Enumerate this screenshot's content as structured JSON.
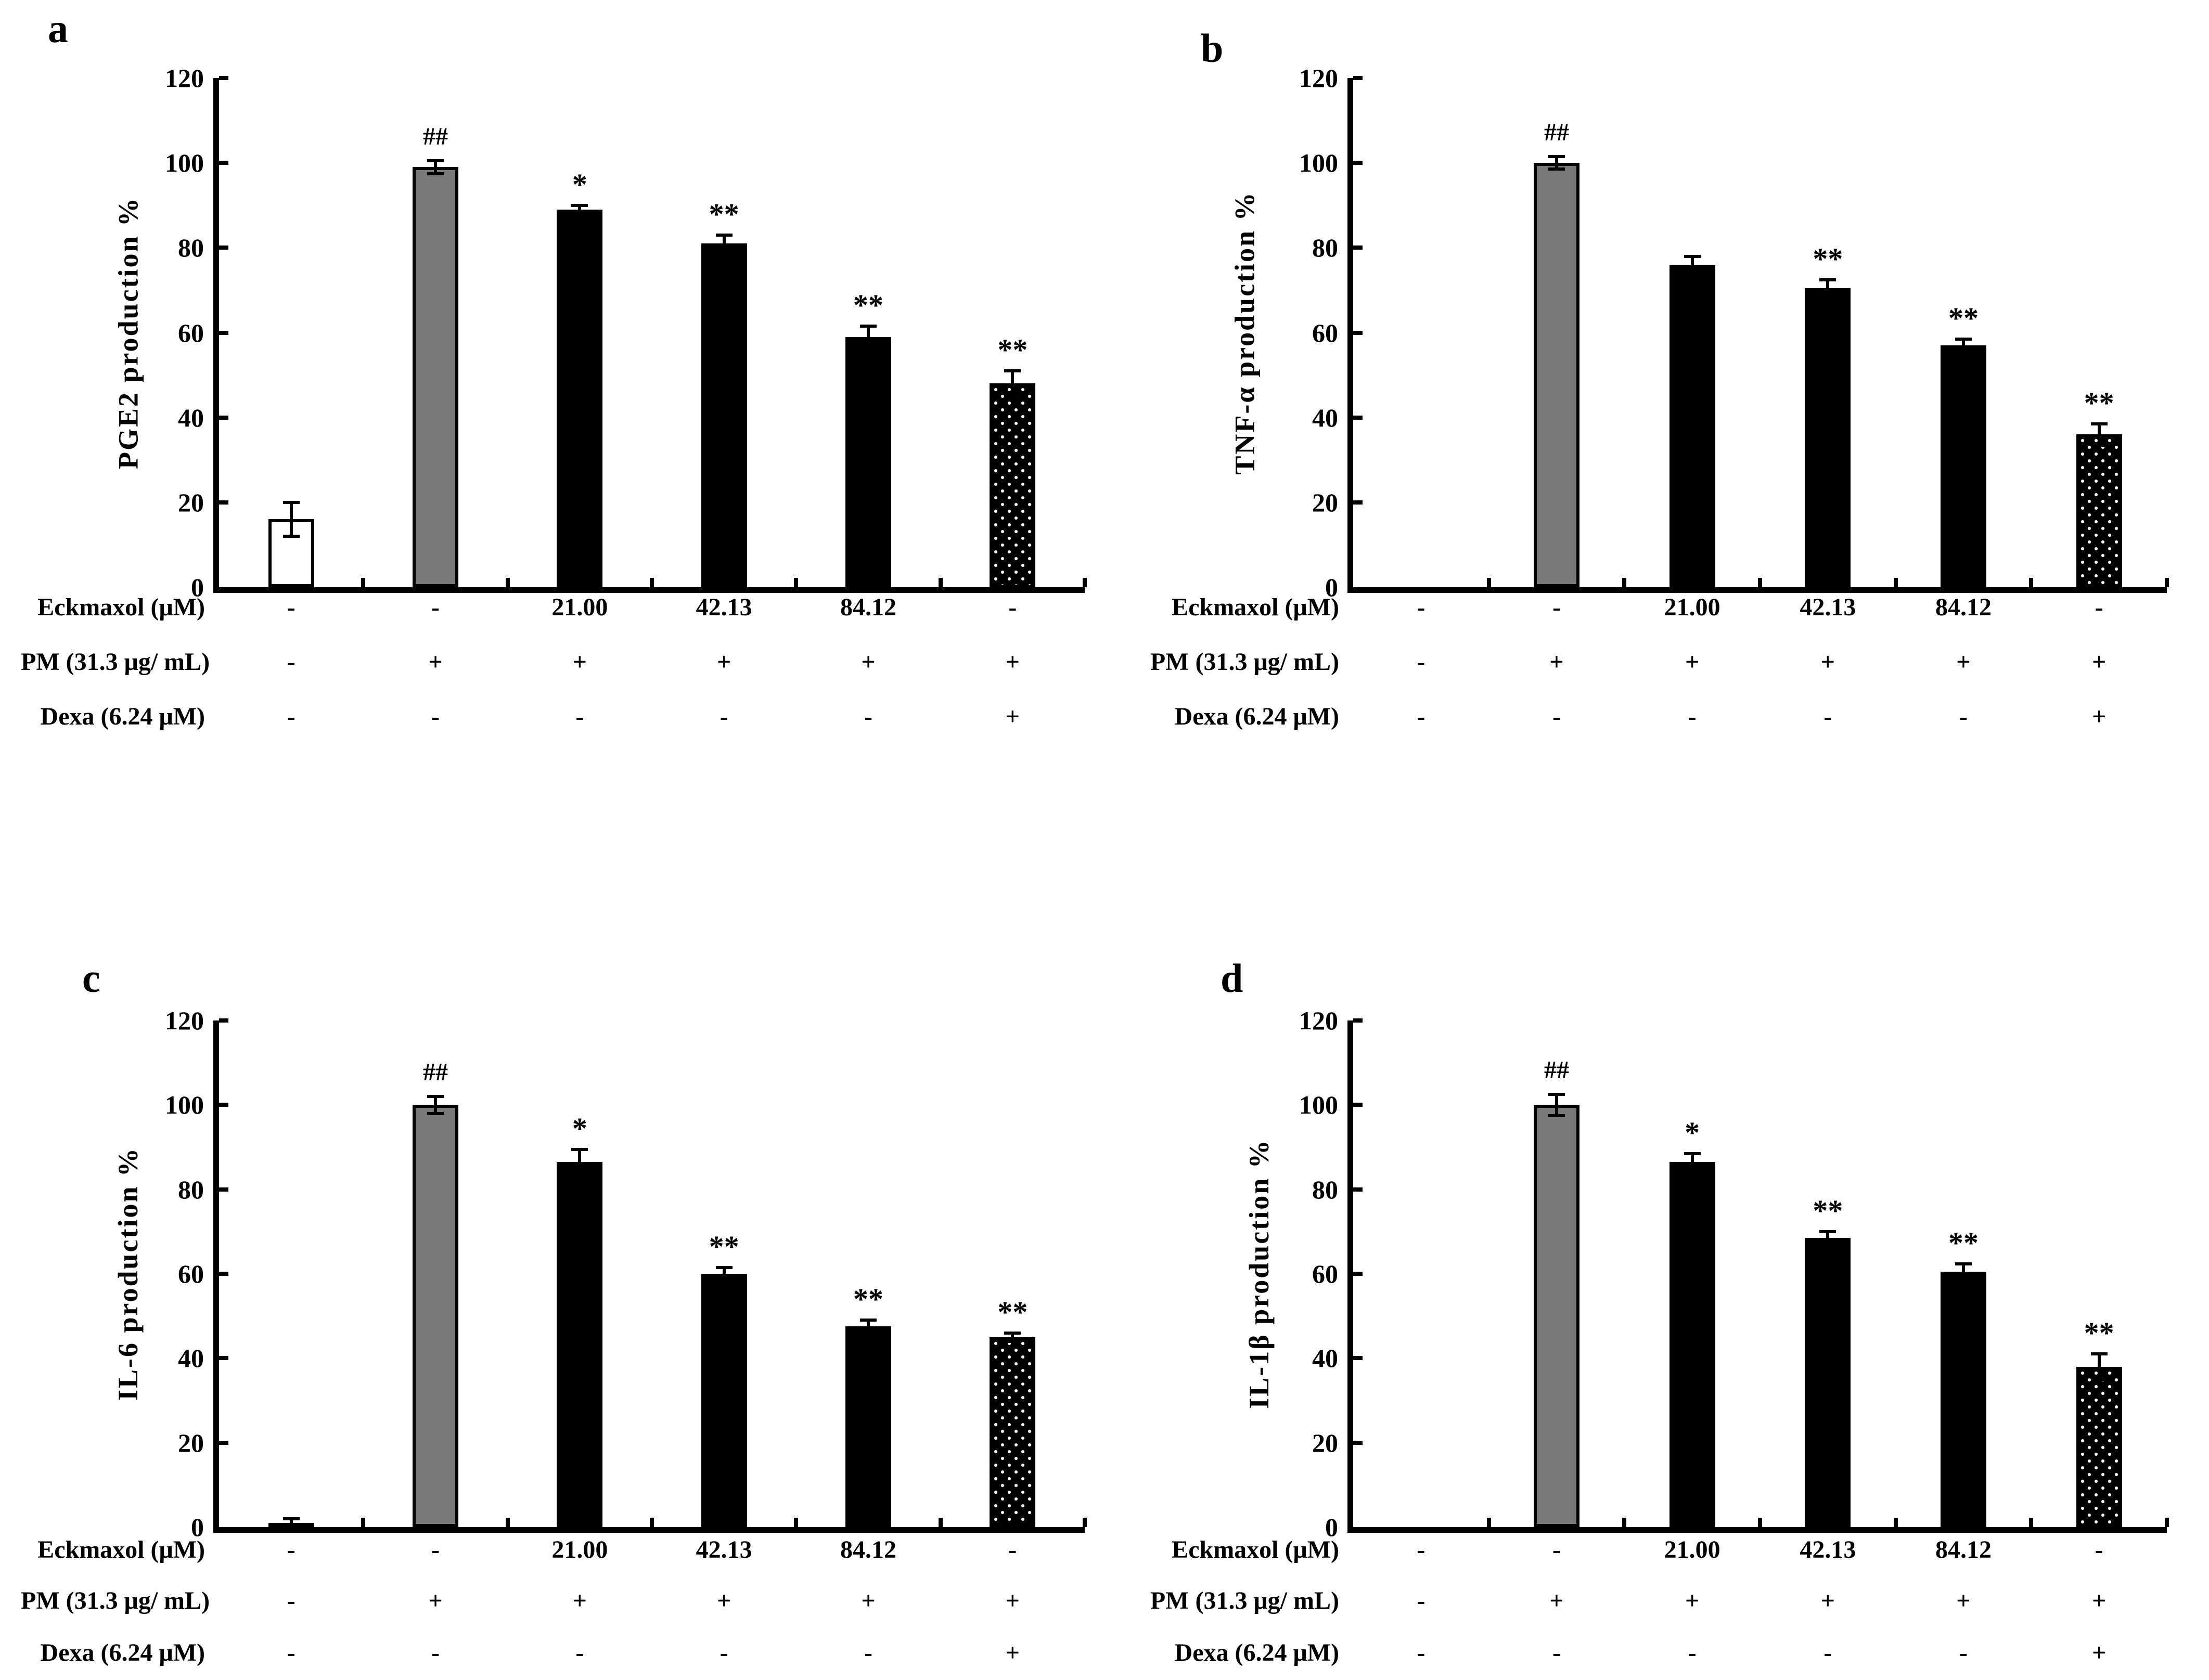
{
  "figure": {
    "background": "#ffffff",
    "colors": {
      "axis": "#000000",
      "bar_white": "#ffffff",
      "bar_gray": "#7a7a7a",
      "bar_black": "#000000",
      "dot_pattern": "#ffffff"
    }
  },
  "chart_data": [
    {
      "panel": "a",
      "type": "bar",
      "ylabel": "PGE2 production %",
      "ylim": [
        0,
        120
      ],
      "yticks": [
        0,
        20,
        40,
        60,
        80,
        100,
        120
      ],
      "values": [
        16,
        99,
        89,
        81,
        59,
        48
      ],
      "errors": [
        4,
        1.5,
        1,
        2,
        2.5,
        3
      ],
      "annotations": [
        "",
        "##",
        "*",
        "**",
        "**",
        "**"
      ],
      "bar_styles": [
        "white",
        "gray",
        "black",
        "black",
        "black",
        "dotted"
      ],
      "x_table": [
        {
          "label": "Eckmaxol (μM)",
          "values": [
            "-",
            "-",
            "21.00",
            "42.13",
            "84.12",
            "-"
          ]
        },
        {
          "label": "PM (31.3 μg/ mL)",
          "values": [
            "-",
            "+",
            "+",
            "+",
            "+",
            "+"
          ]
        },
        {
          "label": "Dexa (6.24 μM)",
          "values": [
            "-",
            "-",
            "-",
            "-",
            "-",
            "+"
          ]
        }
      ]
    },
    {
      "panel": "b",
      "type": "bar",
      "ylabel": "TNF-α production %",
      "ylim": [
        0,
        120
      ],
      "yticks": [
        0,
        20,
        40,
        60,
        80,
        100,
        120
      ],
      "values": [
        0,
        100,
        76,
        70.5,
        57,
        36
      ],
      "errors": [
        0,
        1.5,
        2,
        2,
        1.5,
        2.5
      ],
      "annotations": [
        "",
        "##",
        "",
        "**",
        "**",
        "**"
      ],
      "bar_styles": [
        "white",
        "gray",
        "black",
        "black",
        "black",
        "dotted"
      ],
      "x_table": [
        {
          "label": "Eckmaxol (μM)",
          "values": [
            "-",
            "-",
            "21.00",
            "42.13",
            "84.12",
            "-"
          ]
        },
        {
          "label": "PM (31.3 μg/ mL)",
          "values": [
            "-",
            "+",
            "+",
            "+",
            "+",
            "+"
          ]
        },
        {
          "label": "Dexa (6.24 μM)",
          "values": [
            "-",
            "-",
            "-",
            "-",
            "-",
            "+"
          ]
        }
      ]
    },
    {
      "panel": "c",
      "type": "bar",
      "ylabel": "IL-6 production %",
      "ylim": [
        0,
        120
      ],
      "yticks": [
        0,
        20,
        40,
        60,
        80,
        100,
        120
      ],
      "values": [
        1,
        100,
        86.5,
        60,
        47.5,
        45
      ],
      "errors": [
        1,
        2,
        3,
        1.5,
        1.5,
        1
      ],
      "annotations": [
        "",
        "##",
        "*",
        "**",
        "**",
        "**"
      ],
      "bar_styles": [
        "black",
        "gray",
        "black",
        "black",
        "black",
        "dotted"
      ],
      "x_table": [
        {
          "label": "Eckmaxol (μM)",
          "values": [
            "-",
            "-",
            "21.00",
            "42.13",
            "84.12",
            "-"
          ]
        },
        {
          "label": "PM (31.3 μg/ mL)",
          "values": [
            "-",
            "+",
            "+",
            "+",
            "+",
            "+"
          ]
        },
        {
          "label": "Dexa (6.24 μM)",
          "values": [
            "-",
            "-",
            "-",
            "-",
            "-",
            "+"
          ]
        }
      ]
    },
    {
      "panel": "d",
      "type": "bar",
      "ylabel": "IL-1β production %",
      "ylim": [
        0,
        120
      ],
      "yticks": [
        0,
        20,
        40,
        60,
        80,
        100,
        120
      ],
      "values": [
        0,
        100,
        86.5,
        68.5,
        60.5,
        38
      ],
      "errors": [
        0,
        2.5,
        2,
        1.5,
        1.8,
        3
      ],
      "annotations": [
        "",
        "##",
        "*",
        "**",
        "**",
        "**"
      ],
      "bar_styles": [
        "white",
        "gray",
        "black",
        "black",
        "black",
        "dotted"
      ],
      "x_table": [
        {
          "label": "Eckmaxol (μM)",
          "values": [
            "-",
            "-",
            "21.00",
            "42.13",
            "84.12",
            "-"
          ]
        },
        {
          "label": "PM (31.3 μg/ mL)",
          "values": [
            "-",
            "+",
            "+",
            "+",
            "+",
            "+"
          ]
        },
        {
          "label": "Dexa (6.24 μM)",
          "values": [
            "-",
            "-",
            "-",
            "-",
            "-",
            "+"
          ]
        }
      ]
    }
  ]
}
